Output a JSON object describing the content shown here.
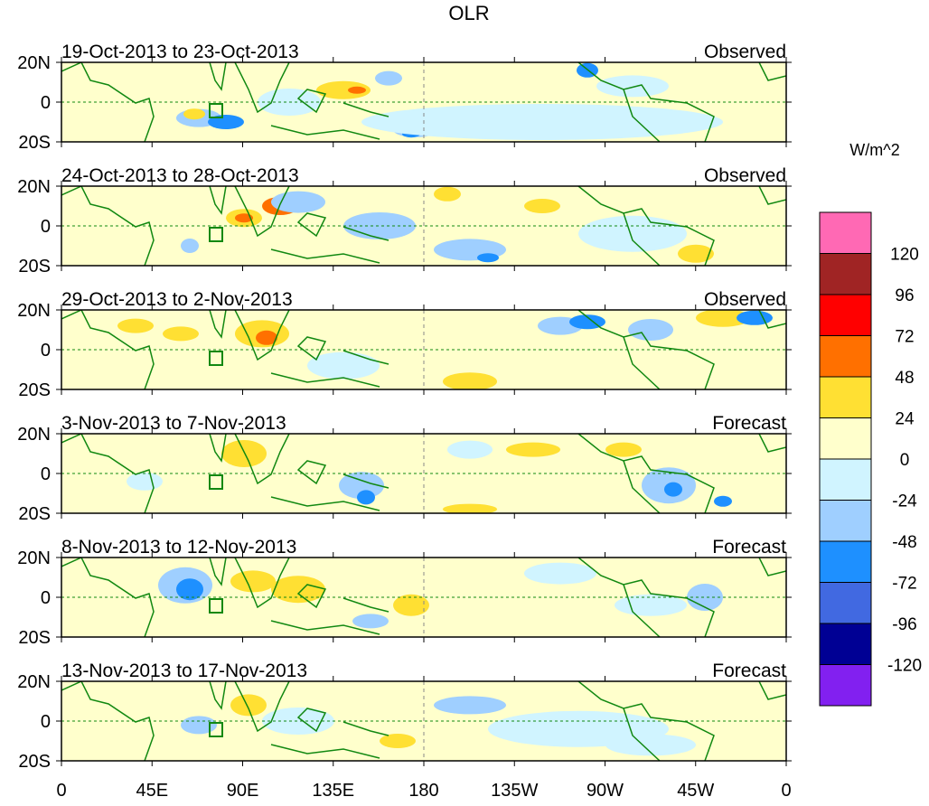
{
  "title": "OLR",
  "units": "W/m^2",
  "panels": [
    {
      "period": "19-Oct-2013 to 23-Oct-2013",
      "type": "Observed"
    },
    {
      "period": "24-Oct-2013 to 28-Oct-2013",
      "type": "Observed"
    },
    {
      "period": "29-Oct-2013 to 2-Nov-2013",
      "type": "Observed"
    },
    {
      "period": "3-Nov-2013 to 7-Nov-2013",
      "type": "Forecast"
    },
    {
      "period": "8-Nov-2013 to 12-Nov-2013",
      "type": "Forecast"
    },
    {
      "period": "13-Nov-2013 to 17-Nov-2013",
      "type": "Forecast"
    }
  ],
  "lat_ticks": [
    "20N",
    "0",
    "20S"
  ],
  "lon_ticks": [
    "0",
    "45E",
    "90E",
    "135E",
    "180",
    "135W",
    "90W",
    "45W",
    "0"
  ],
  "colorbar": {
    "colors": [
      "#ff69b4",
      "#a02424",
      "#ff0000",
      "#ff7000",
      "#ffe033",
      "#ffffcc",
      "#d0f4ff",
      "#9fcfff",
      "#1e90ff",
      "#4169e1",
      "#000094",
      "#8220f0"
    ],
    "labels": [
      "120",
      "96",
      "72",
      "48",
      "24",
      "0",
      "-24",
      "-48",
      "-72",
      "-96",
      "-120"
    ]
  },
  "colors": {
    "coast": "#118811",
    "background": "#ffffcc"
  }
}
